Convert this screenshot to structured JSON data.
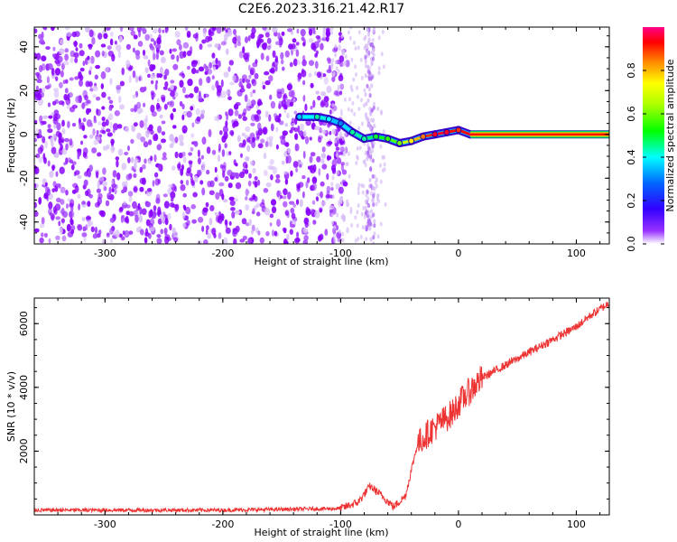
{
  "title": "C2E6.2023.316.21.42.R17",
  "colors": {
    "spectrum_main": "#8800ff",
    "spectrum_light": "#d7bdf7",
    "snr_line": "#ee3333",
    "ridge_core": "#ff0000",
    "ridge_edge": "#00cc00"
  },
  "chart_data": [
    {
      "type": "heatmap",
      "title": "",
      "xlabel": "Height of straight line (km)",
      "ylabel": "Frequency (Hz)",
      "xlim": [
        -360,
        128
      ],
      "ylim": [
        -50,
        49
      ],
      "x_ticks": [
        -300,
        -200,
        -100,
        0,
        100
      ],
      "x_tick_labels": [
        "-300",
        "-200",
        "-100",
        "0",
        "100"
      ],
      "y_ticks": [
        40,
        20,
        0,
        -20,
        -40
      ],
      "y_tick_labels": [
        "40",
        "20",
        "0",
        "-20",
        "-40"
      ],
      "colorbar": {
        "label": "Normalized spectral amplitude",
        "range": [
          0,
          1
        ],
        "ticks": [
          0.0,
          0.2,
          0.4,
          0.6,
          0.8
        ],
        "tick_labels": [
          "0.0",
          "0.2",
          "0.4",
          "0.6",
          "0.8"
        ]
      },
      "noise_region_x": [
        -360,
        -100
      ],
      "ridge": {
        "x": [
          -135,
          -120,
          -110,
          -100,
          -90,
          -80,
          -70,
          -60,
          -50,
          -40,
          -30,
          -20,
          -10,
          0,
          10,
          128
        ],
        "freq": [
          8,
          8,
          7,
          5,
          1,
          -2,
          -1,
          -2,
          -4,
          -3,
          -1,
          0,
          1,
          2,
          0,
          0
        ],
        "amplitude": [
          0.35,
          0.45,
          0.4,
          0.3,
          0.45,
          0.45,
          0.5,
          0.55,
          0.6,
          0.75,
          0.85,
          0.95,
          0.95,
          0.9,
          0.95,
          0.98
        ]
      }
    },
    {
      "type": "line",
      "title": "",
      "xlabel": "Height of straight line (km)",
      "ylabel": "SNR (10 * v/v)",
      "xlim": [
        -360,
        128
      ],
      "ylim": [
        0,
        6800
      ],
      "x_ticks": [
        -300,
        -200,
        -100,
        0,
        100
      ],
      "x_tick_labels": [
        "-300",
        "-200",
        "-100",
        "0",
        "100"
      ],
      "y_ticks": [
        2000,
        4000,
        6000
      ],
      "y_tick_labels": [
        "2000",
        "4000",
        "6000"
      ],
      "series": [
        {
          "x": [
            -360,
            -300,
            -200,
            -100,
            -85,
            -75,
            -65,
            -55,
            -45,
            -35,
            -25,
            -15,
            -5,
            0,
            10,
            20,
            40,
            60,
            80,
            100,
            110,
            128
          ],
          "values": [
            150,
            150,
            150,
            200,
            400,
            900,
            600,
            250,
            600,
            2200,
            2600,
            2900,
            3200,
            3500,
            3900,
            4300,
            4700,
            5100,
            5500,
            5900,
            6200,
            6650
          ]
        }
      ]
    }
  ]
}
